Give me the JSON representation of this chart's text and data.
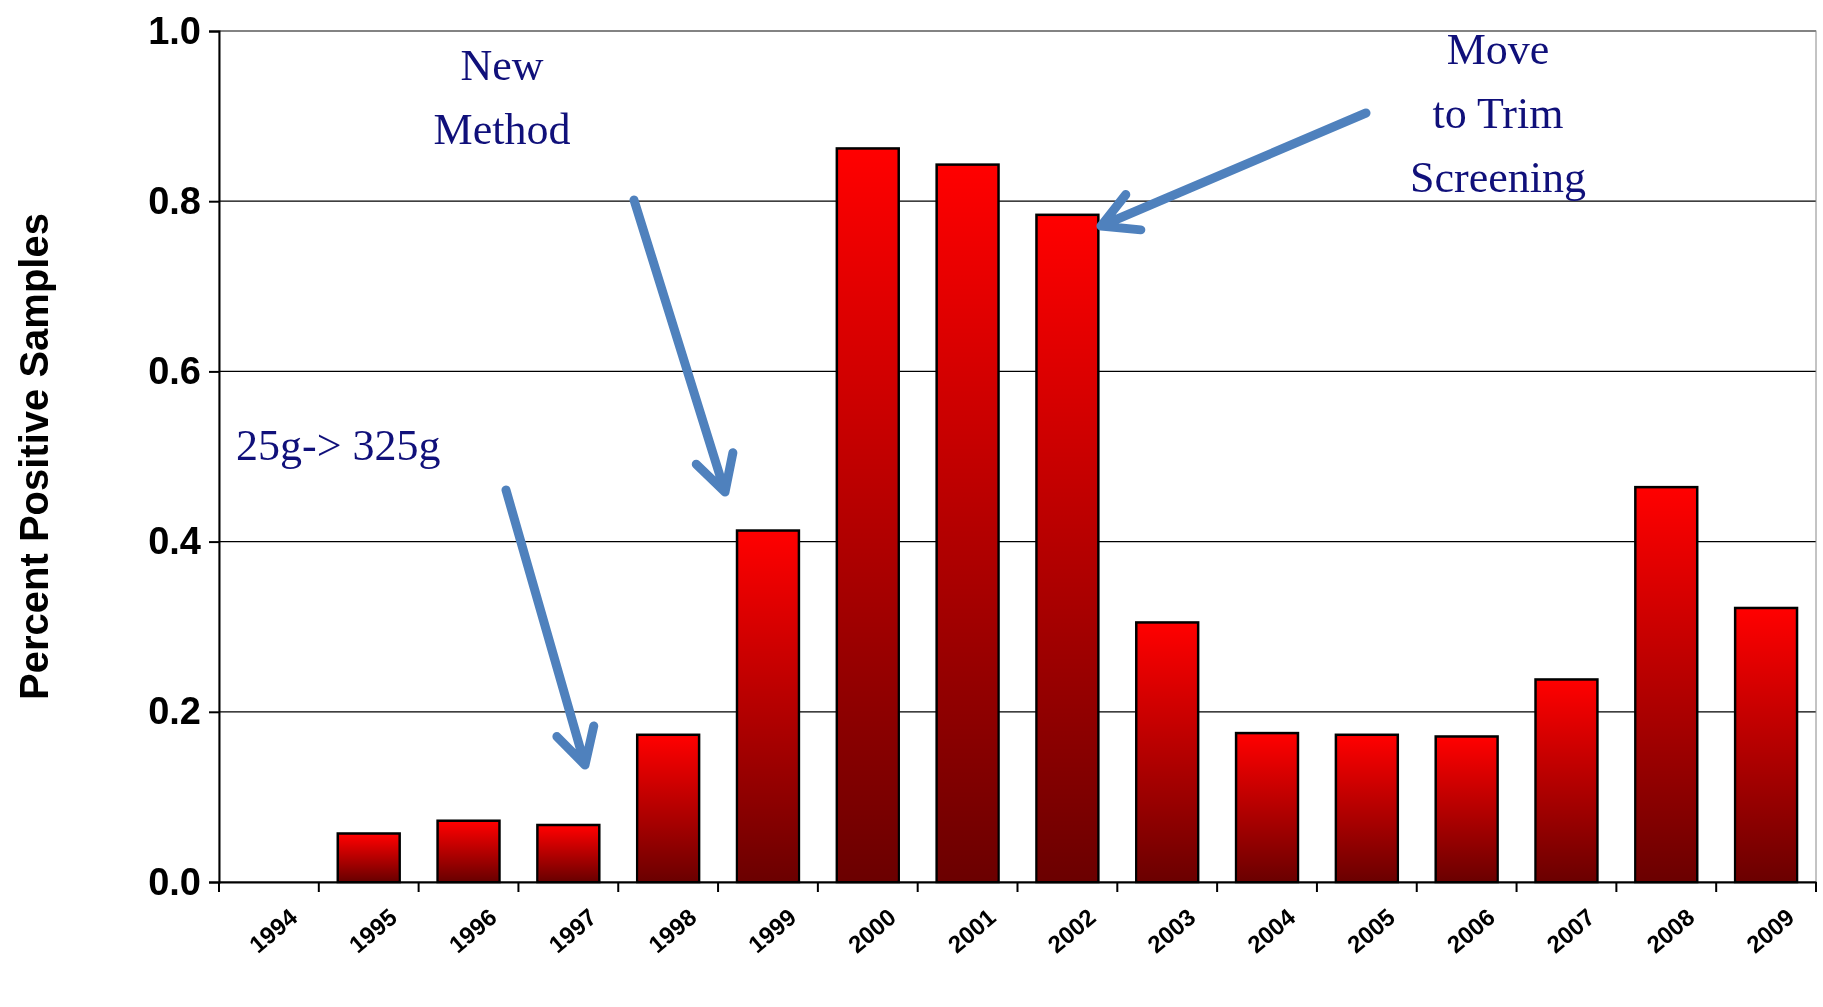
{
  "chart_data": {
    "type": "bar",
    "ylabel": "Percent Positive Samples",
    "categories": [
      "1994",
      "1995",
      "1996",
      "1997",
      "1998",
      "1999",
      "2000",
      "2001",
      "2002",
      "2003",
      "2004",
      "2005",
      "2006",
      "2007",
      "2008",
      "2009"
    ],
    "values": [
      0,
      0.057,
      0.072,
      0.067,
      0.173,
      0.413,
      0.862,
      0.843,
      0.784,
      0.305,
      0.175,
      0.173,
      0.171,
      0.238,
      0.464,
      0.322
    ],
    "color": "#ff0000",
    "ylim": [
      0,
      1
    ],
    "yticks": [
      {
        "value": 0,
        "label": "0.0"
      },
      {
        "value": 0.2,
        "label": "0.2"
      },
      {
        "value": 0.4,
        "label": "0.4"
      },
      {
        "value": 0.6,
        "label": "0.6"
      },
      {
        "value": 0.8,
        "label": "0.8"
      },
      {
        "value": 1,
        "label": "1.0"
      }
    ],
    "grid": "y",
    "annotations": [
      "25g-> 325g",
      "New\nMethod",
      "Move\nto Trim\nScreening"
    ]
  }
}
